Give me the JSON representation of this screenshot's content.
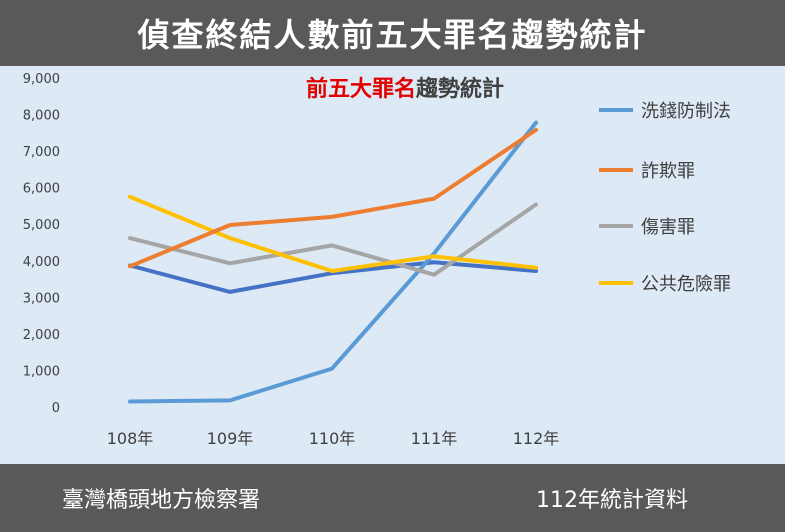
{
  "header": {
    "title": "偵查終結人數前五大罪名趨勢統計"
  },
  "footer": {
    "left": "臺灣橋頭地方檢察署",
    "right": "112年統計資料"
  },
  "chart_data": {
    "type": "line",
    "title_red": "前五大罪名",
    "title_dark": "趨勢統計",
    "categories": [
      "108年",
      "109年",
      "110年",
      "111年",
      "112年"
    ],
    "y_ticks": [
      "0",
      "1,000",
      "2,000",
      "3,000",
      "4,000",
      "5,000",
      "6,000",
      "7,000",
      "8,000",
      "9,000"
    ],
    "ylim": [
      0,
      9000
    ],
    "grid": false,
    "legend_position": "right",
    "series": [
      {
        "name": "洗錢防制法",
        "color": "#5b9bd5",
        "values": [
          150,
          180,
          1050,
          4200,
          7780
        ]
      },
      {
        "name": "詐欺罪",
        "color": "#ed7d31",
        "values": [
          3850,
          4980,
          5200,
          5700,
          7580
        ]
      },
      {
        "name": "傷害罪",
        "color": "#a5a5a5",
        "values": [
          4620,
          3930,
          4420,
          3620,
          5540
        ]
      },
      {
        "name": "公共危險罪",
        "color": "#ffc000",
        "values": [
          5750,
          4620,
          3720,
          4120,
          3810
        ]
      },
      {
        "name": "",
        "color": "#4472c4",
        "values": [
          3870,
          3150,
          3660,
          3960,
          3720
        ]
      }
    ]
  }
}
